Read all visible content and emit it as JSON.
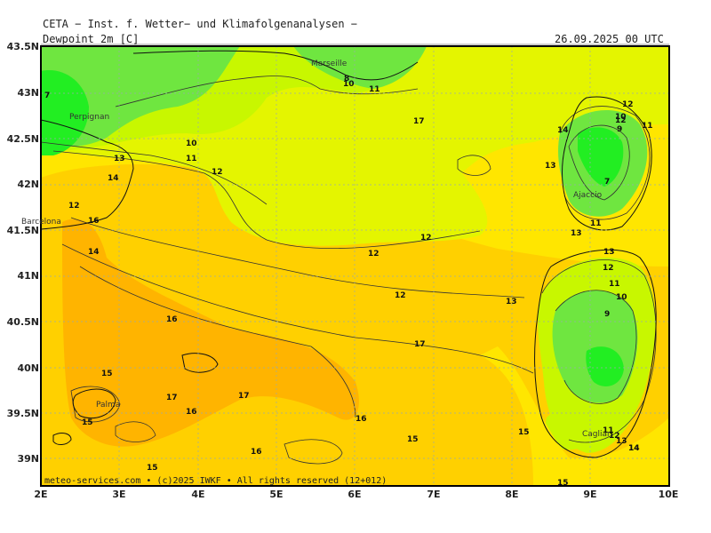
{
  "header": {
    "institute": "CETA − Inst. f. Wetter− und Klimafolgenanalysen −",
    "parameter": "Dewpoint 2m [C]",
    "datetime": "26.09.2025 00 UTC"
  },
  "footer": "meteo-services.com • (c)2025 IWKF • All rights reserved (12+012)",
  "axes": {
    "lat_labels": [
      "43.5N",
      "43N",
      "42.5N",
      "42N",
      "41.5N",
      "41N",
      "40.5N",
      "40N",
      "39.5N",
      "39N"
    ],
    "lon_labels": [
      "2E",
      "3E",
      "4E",
      "5E",
      "6E",
      "7E",
      "8E",
      "9E",
      "10E"
    ]
  },
  "cities": [
    "Marseille",
    "Perpignan",
    "Barcelona",
    "Ajaccio",
    "Palma",
    "Cagliari"
  ],
  "contour_labels": [
    "7",
    "8",
    "10",
    "11",
    "10",
    "11",
    "12",
    "13",
    "14",
    "12",
    "16",
    "17",
    "12",
    "12",
    "12",
    "13",
    "14",
    "17",
    "15",
    "16",
    "17",
    "17",
    "16",
    "16",
    "15",
    "15",
    "16",
    "15",
    "15",
    "15",
    "11",
    "12",
    "13",
    "14",
    "13",
    "12",
    "11",
    "10",
    "9",
    "7",
    "11",
    "13",
    "12",
    "14",
    "10",
    "9",
    "11",
    "12",
    "13",
    "14"
  ],
  "colors": {
    "orange": "#ffb400",
    "yellow_orange": "#ffd000",
    "yellow": "#ffee00",
    "yellow_green": "#e4f500",
    "lime": "#c8f700",
    "green": "#6fe640",
    "bright_green": "#22ee22"
  }
}
